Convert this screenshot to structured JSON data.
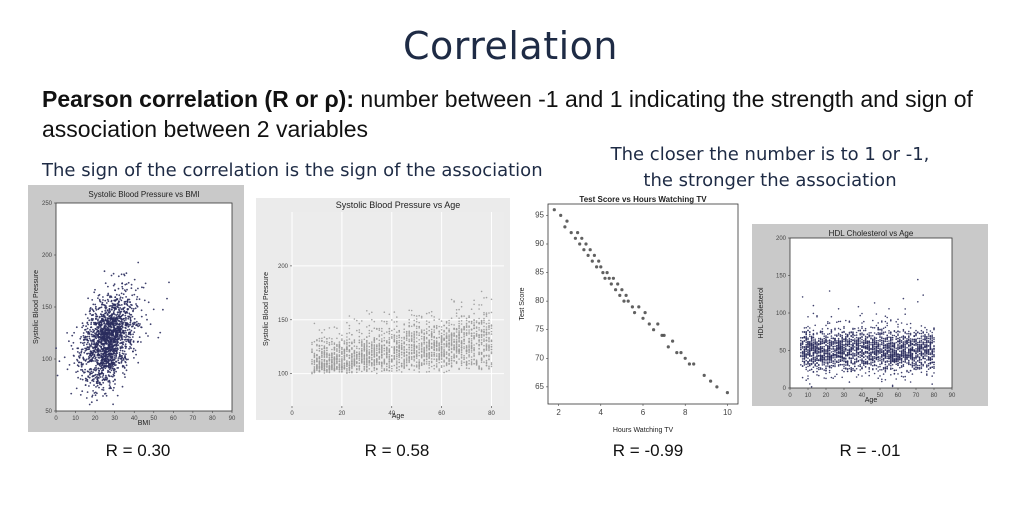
{
  "title": "Correlation",
  "definition": {
    "bold": "Pearson correlation (R or ρ):",
    "text": " number between -1 and 1 indicating the strength and sign of association between 2 variables"
  },
  "subtitle_left": "The sign of the correlation is the sign of the association",
  "subtitle_right_line1": "The closer the number is to 1 or -1,",
  "subtitle_right_line2": "the stronger the association",
  "chart_data": [
    {
      "type": "scatter",
      "title": "Systolic Blood Pressure vs BMI",
      "xlabel": "BMI",
      "ylabel": "Systolic Blood Pressure",
      "xlim": [
        0,
        90
      ],
      "ylim": [
        50,
        250
      ],
      "xticks": [
        0,
        10,
        20,
        30,
        40,
        50,
        60,
        70,
        80,
        90
      ],
      "yticks": [
        50,
        100,
        150,
        200,
        250
      ],
      "r_label": "R = 0.30",
      "r": 0.3,
      "x_center": 27,
      "x_spread": 6,
      "y_center": 120,
      "y_spread": 20,
      "point_color": "#2b2d5e",
      "panel_bg": "#c9c9c9"
    },
    {
      "type": "scatter",
      "title": "Systolic Blood Pressure vs Age",
      "xlabel": "Age",
      "ylabel": "Systolic Blood Pressure",
      "xlim": [
        0,
        85
      ],
      "ylim": [
        70,
        250
      ],
      "xticks": [
        0,
        20,
        40,
        60,
        80
      ],
      "yticks": [
        100,
        150,
        200
      ],
      "r_label": "R = 0.58",
      "r": 0.58,
      "x_range": [
        8,
        80
      ],
      "y_base": 100,
      "y_slope": 0.55,
      "y_spread": 16,
      "point_color": "#9a9a9a",
      "panel_bg": "#ebebeb"
    },
    {
      "type": "scatter",
      "title": "Test Score vs Hours Watching TV",
      "xlabel": "Hours Watching TV",
      "ylabel": "Test Score",
      "xlim": [
        1.5,
        10.5
      ],
      "ylim": [
        62,
        97
      ],
      "xticks": [
        2,
        4,
        6,
        8,
        10
      ],
      "yticks": [
        65,
        70,
        75,
        80,
        85,
        90,
        95
      ],
      "r_label": "R = -0.99",
      "r": -0.99,
      "x": [
        1.8,
        2.1,
        2.3,
        2.4,
        2.6,
        2.8,
        2.9,
        3.0,
        3.1,
        3.2,
        3.3,
        3.4,
        3.5,
        3.6,
        3.7,
        3.8,
        3.9,
        4.0,
        4.1,
        4.2,
        4.3,
        4.4,
        4.5,
        4.6,
        4.7,
        4.8,
        4.9,
        5.0,
        5.1,
        5.2,
        5.3,
        5.5,
        5.6,
        5.8,
        6.0,
        6.1,
        6.3,
        6.5,
        6.7,
        6.9,
        7.0,
        7.2,
        7.4,
        7.6,
        7.8,
        8.0,
        8.2,
        8.4,
        8.9,
        9.2,
        9.5,
        10.0
      ],
      "y": [
        96,
        95,
        93,
        94,
        92,
        91,
        92,
        90,
        91,
        89,
        90,
        88,
        89,
        87,
        88,
        86,
        87,
        86,
        85,
        84,
        85,
        84,
        83,
        84,
        82,
        83,
        81,
        82,
        80,
        81,
        80,
        79,
        78,
        79,
        77,
        78,
        76,
        75,
        76,
        74,
        74,
        72,
        73,
        71,
        71,
        70,
        69,
        69,
        67,
        66,
        65,
        64
      ],
      "point_color": "#444444",
      "panel_bg": "#ffffff"
    },
    {
      "type": "scatter",
      "title": "HDL Cholesterol vs Age",
      "xlabel": "Age",
      "ylabel": "HDL Cholesterol",
      "xlim": [
        0,
        90
      ],
      "ylim": [
        0,
        200
      ],
      "xticks": [
        0,
        10,
        20,
        30,
        40,
        50,
        60,
        70,
        80,
        90
      ],
      "yticks": [
        0,
        50,
        100,
        150,
        200
      ],
      "r_label": "R = -.01",
      "r": -0.01,
      "x_range": [
        6,
        80
      ],
      "y_center": 50,
      "y_spread": 14,
      "point_color": "#2b2d5e",
      "panel_bg": "#c9c9c9"
    }
  ]
}
